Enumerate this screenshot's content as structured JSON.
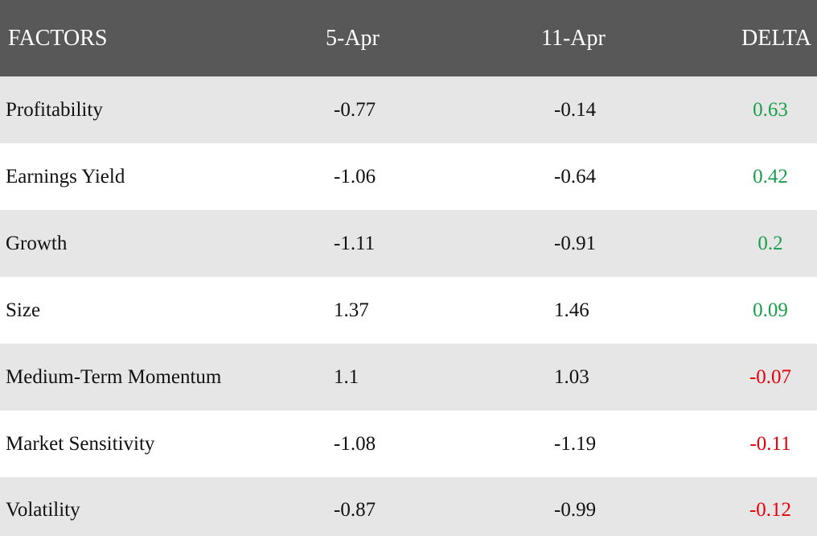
{
  "colors": {
    "header_bg": "#585858",
    "odd_row_bg": "#e6e6e6",
    "positive": "#1a9e4a",
    "negative": "#e8000b"
  },
  "chart_data": {
    "type": "table",
    "columns": [
      "FACTORS",
      "5-Apr",
      "11-Apr",
      "DELTA"
    ],
    "rows": [
      {
        "factor": "Profitability",
        "apr5": "-0.77",
        "apr11": "-0.14",
        "delta": "0.63",
        "sign": "positive"
      },
      {
        "factor": "Earnings Yield",
        "apr5": "-1.06",
        "apr11": "-0.64",
        "delta": "0.42",
        "sign": "positive"
      },
      {
        "factor": "Growth",
        "apr5": "-1.11",
        "apr11": "-0.91",
        "delta": "0.2",
        "sign": "positive"
      },
      {
        "factor": "Size",
        "apr5": "1.37",
        "apr11": "1.46",
        "delta": "0.09",
        "sign": "positive"
      },
      {
        "factor": "Medium-Term Momentum",
        "apr5": "1.1",
        "apr11": "1.03",
        "delta": "-0.07",
        "sign": "negative"
      },
      {
        "factor": "Market Sensitivity",
        "apr5": "-1.08",
        "apr11": "-1.19",
        "delta": "-0.11",
        "sign": "negative"
      },
      {
        "factor": "Volatility",
        "apr5": "-0.87",
        "apr11": "-0.99",
        "delta": "-0.12",
        "sign": "negative"
      }
    ]
  }
}
